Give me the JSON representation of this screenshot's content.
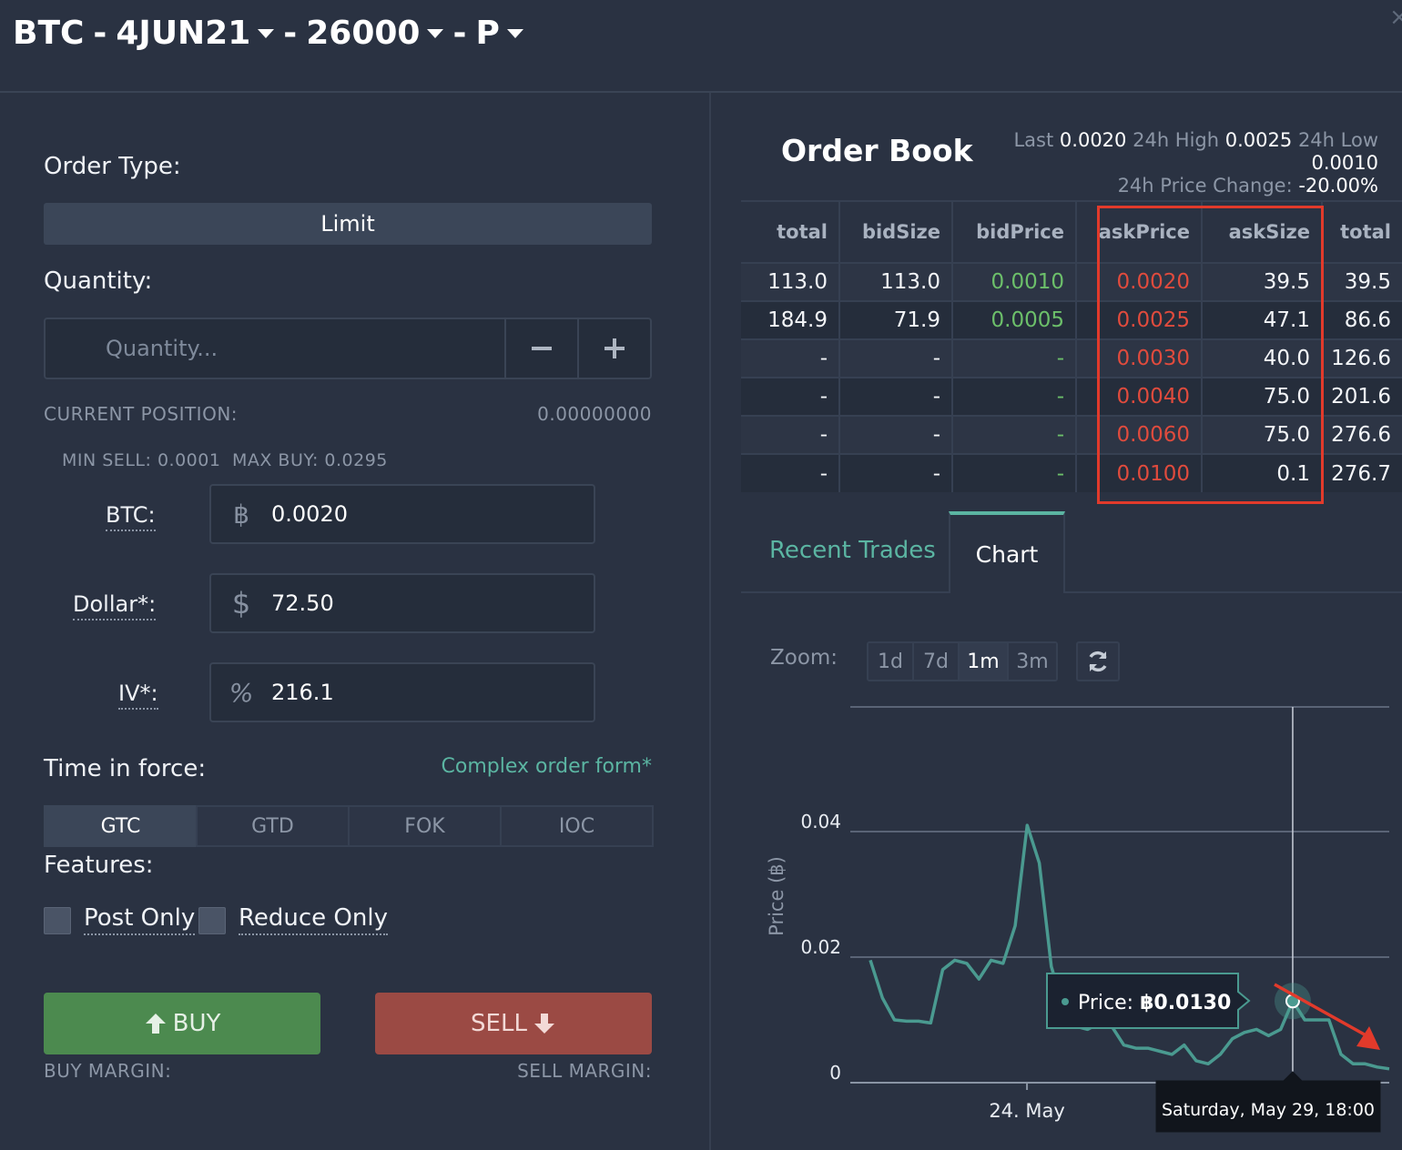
{
  "header": {
    "underlying": "BTC",
    "sep1": "-",
    "expiry": "4JUN21",
    "sep2": "-",
    "strike": "26000",
    "sep3": "-",
    "type": "P",
    "close": "×"
  },
  "order_form": {
    "order_type_label": "Order Type:",
    "order_type_value": "Limit",
    "quantity_label": "Quantity:",
    "quantity_placeholder": "Quantity...",
    "current_position_label": "CURRENT POSITION:",
    "current_position_value": "0.00000000",
    "min_sell_label": "MIN SELL:",
    "min_sell_value": "0.0001",
    "max_buy_label": "MAX BUY:",
    "max_buy_value": "0.0295",
    "btc_label": "BTC:",
    "btc_icon": "฿",
    "btc_value": "0.0020",
    "dollar_label": "Dollar*:",
    "dollar_icon": "$",
    "dollar_value": "72.50",
    "iv_label": "IV*:",
    "iv_icon": "%",
    "iv_value": "216.1",
    "time_in_force_label": "Time in force:",
    "complex_link": "Complex order form*",
    "tif_options": [
      "GTC",
      "GTD",
      "FOK",
      "IOC"
    ],
    "tif_selected": "GTC",
    "features_label": "Features:",
    "post_only_label": "Post Only",
    "reduce_only_label": "Reduce Only",
    "buy_label": "BUY",
    "sell_label": "SELL",
    "buy_margin_label": "BUY MARGIN:",
    "sell_margin_label": "SELL MARGIN:"
  },
  "order_book": {
    "title": "Order Book",
    "last_label": "Last",
    "last_value": "0.0020",
    "high_label": "24h High",
    "high_value": "0.0025",
    "low_label": "24h Low",
    "low_value": "0.0010",
    "change_label": "24h Price Change:",
    "change_value": "-20.00%",
    "columns": [
      "total",
      "bidSize",
      "bidPrice",
      "askPrice",
      "askSize",
      "total"
    ],
    "rows": [
      [
        "113.0",
        "113.0",
        "0.0010",
        "0.0020",
        "39.5",
        "39.5"
      ],
      [
        "184.9",
        "71.9",
        "0.0005",
        "0.0025",
        "47.1",
        "86.6"
      ],
      [
        "-",
        "-",
        "-",
        "0.0030",
        "40.0",
        "126.6"
      ],
      [
        "-",
        "-",
        "-",
        "0.0040",
        "75.0",
        "201.6"
      ],
      [
        "-",
        "-",
        "-",
        "0.0060",
        "75.0",
        "276.6"
      ],
      [
        "-",
        "-",
        "-",
        "0.0100",
        "0.1",
        "276.7"
      ]
    ],
    "bid_color": "#6cbf6a",
    "ask_color": "#e04b3d",
    "highlight_color": "#e23a2b"
  },
  "tabs": {
    "recent_trades": "Recent Trades",
    "chart": "Chart",
    "active": "Chart"
  },
  "zoom": {
    "label": "Zoom:",
    "options": [
      "1d",
      "7d",
      "1m",
      "3m"
    ],
    "selected": "1m",
    "refresh_icon": "refresh-icon"
  },
  "chart_data": {
    "type": "line",
    "ylabel": "Price (฿)",
    "yticks": [
      "0",
      "0.02",
      "0.04"
    ],
    "ylim": [
      0,
      0.05
    ],
    "xticks": [
      "24. May"
    ],
    "line_color": "#4a9a90",
    "series": [
      {
        "x": [
          "May 21 00:00",
          "May 21 06:00",
          "May 21 12:00",
          "May 21 18:00",
          "May 22 00:00",
          "May 22 06:00",
          "May 22 12:00",
          "May 22 18:00",
          "May 23 00:00",
          "May 23 06:00",
          "May 23 12:00",
          "May 23 18:00",
          "May 24 00:00",
          "May 24 06:00",
          "May 24 12:00",
          "May 24 18:00",
          "May 25 00:00",
          "May 25 06:00",
          "May 25 12:00",
          "May 25 18:00",
          "May 26 00:00",
          "May 26 06:00",
          "May 26 12:00",
          "May 26 18:00",
          "May 27 00:00",
          "May 27 06:00",
          "May 27 12:00",
          "May 27 18:00",
          "May 28 00:00",
          "May 28 06:00",
          "May 28 12:00",
          "May 28 18:00",
          "May 29 00:00",
          "May 29 06:00",
          "May 29 12:00",
          "May 29 18:00",
          "May 30 00:00",
          "May 30 06:00",
          "May 30 12:00",
          "May 30 18:00",
          "May 31 00:00",
          "May 31 06:00",
          "May 31 12:00",
          "May 31 18:00"
        ],
        "values": [
          0.0195,
          0.0135,
          0.01,
          0.0098,
          0.0098,
          0.0095,
          0.018,
          0.0195,
          0.019,
          0.0165,
          0.0195,
          0.019,
          0.025,
          0.041,
          0.035,
          0.0185,
          0.012,
          0.009,
          0.0085,
          0.0095,
          0.009,
          0.006,
          0.0055,
          0.0055,
          0.005,
          0.0045,
          0.006,
          0.0035,
          0.003,
          0.0045,
          0.007,
          0.008,
          0.0085,
          0.0075,
          0.0085,
          0.013,
          0.01,
          0.01,
          0.01,
          0.0045,
          0.003,
          0.003,
          0.0025,
          0.0022
        ]
      }
    ],
    "tooltip": {
      "label": "Price:",
      "value": "฿0.0130",
      "date": "Saturday, May 29, 18:00"
    },
    "annotation_color": "#e23a2b"
  }
}
